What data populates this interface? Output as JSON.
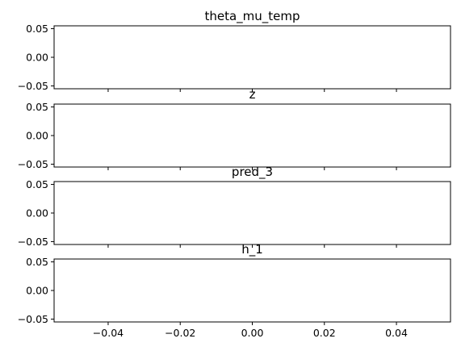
{
  "chart_data": [
    {
      "type": "line",
      "title": "theta_mu_temp",
      "xlabel": "",
      "ylabel": "",
      "xlim": [
        -0.055,
        0.055
      ],
      "ylim": [
        -0.055,
        0.055
      ],
      "x_ticks": [
        -0.04,
        -0.02,
        0.0,
        0.02,
        0.04
      ],
      "y_ticks": [
        -0.05,
        0.0,
        0.05
      ],
      "y_tick_labels": [
        "−0.05",
        "0.00",
        "0.05"
      ],
      "series": [
        {
          "x": [],
          "y": []
        }
      ],
      "grid": false
    },
    {
      "type": "line",
      "title": "z",
      "xlabel": "",
      "ylabel": "",
      "xlim": [
        -0.055,
        0.055
      ],
      "ylim": [
        -0.055,
        0.055
      ],
      "x_ticks": [
        -0.04,
        -0.02,
        0.0,
        0.02,
        0.04
      ],
      "y_ticks": [
        -0.05,
        0.0,
        0.05
      ],
      "y_tick_labels": [
        "−0.05",
        "0.00",
        "0.05"
      ],
      "series": [
        {
          "x": [],
          "y": []
        }
      ],
      "grid": false
    },
    {
      "type": "line",
      "title": "pred_3",
      "xlabel": "",
      "ylabel": "",
      "xlim": [
        -0.055,
        0.055
      ],
      "ylim": [
        -0.055,
        0.055
      ],
      "x_ticks": [
        -0.04,
        -0.02,
        0.0,
        0.02,
        0.04
      ],
      "y_ticks": [
        -0.05,
        0.0,
        0.05
      ],
      "y_tick_labels": [
        "−0.05",
        "0.00",
        "0.05"
      ],
      "series": [
        {
          "x": [],
          "y": []
        }
      ],
      "grid": false
    },
    {
      "type": "line",
      "title": "h_1",
      "xlabel": "",
      "ylabel": "",
      "xlim": [
        -0.055,
        0.055
      ],
      "ylim": [
        -0.055,
        0.055
      ],
      "x_ticks": [
        -0.04,
        -0.02,
        0.0,
        0.02,
        0.04
      ],
      "x_tick_labels": [
        "−0.04",
        "−0.02",
        "0.00",
        "0.02",
        "0.04"
      ],
      "y_ticks": [
        -0.05,
        0.0,
        0.05
      ],
      "y_tick_labels": [
        "−0.05",
        "0.00",
        "0.05"
      ],
      "series": [
        {
          "x": [],
          "y": []
        }
      ],
      "grid": false
    }
  ]
}
